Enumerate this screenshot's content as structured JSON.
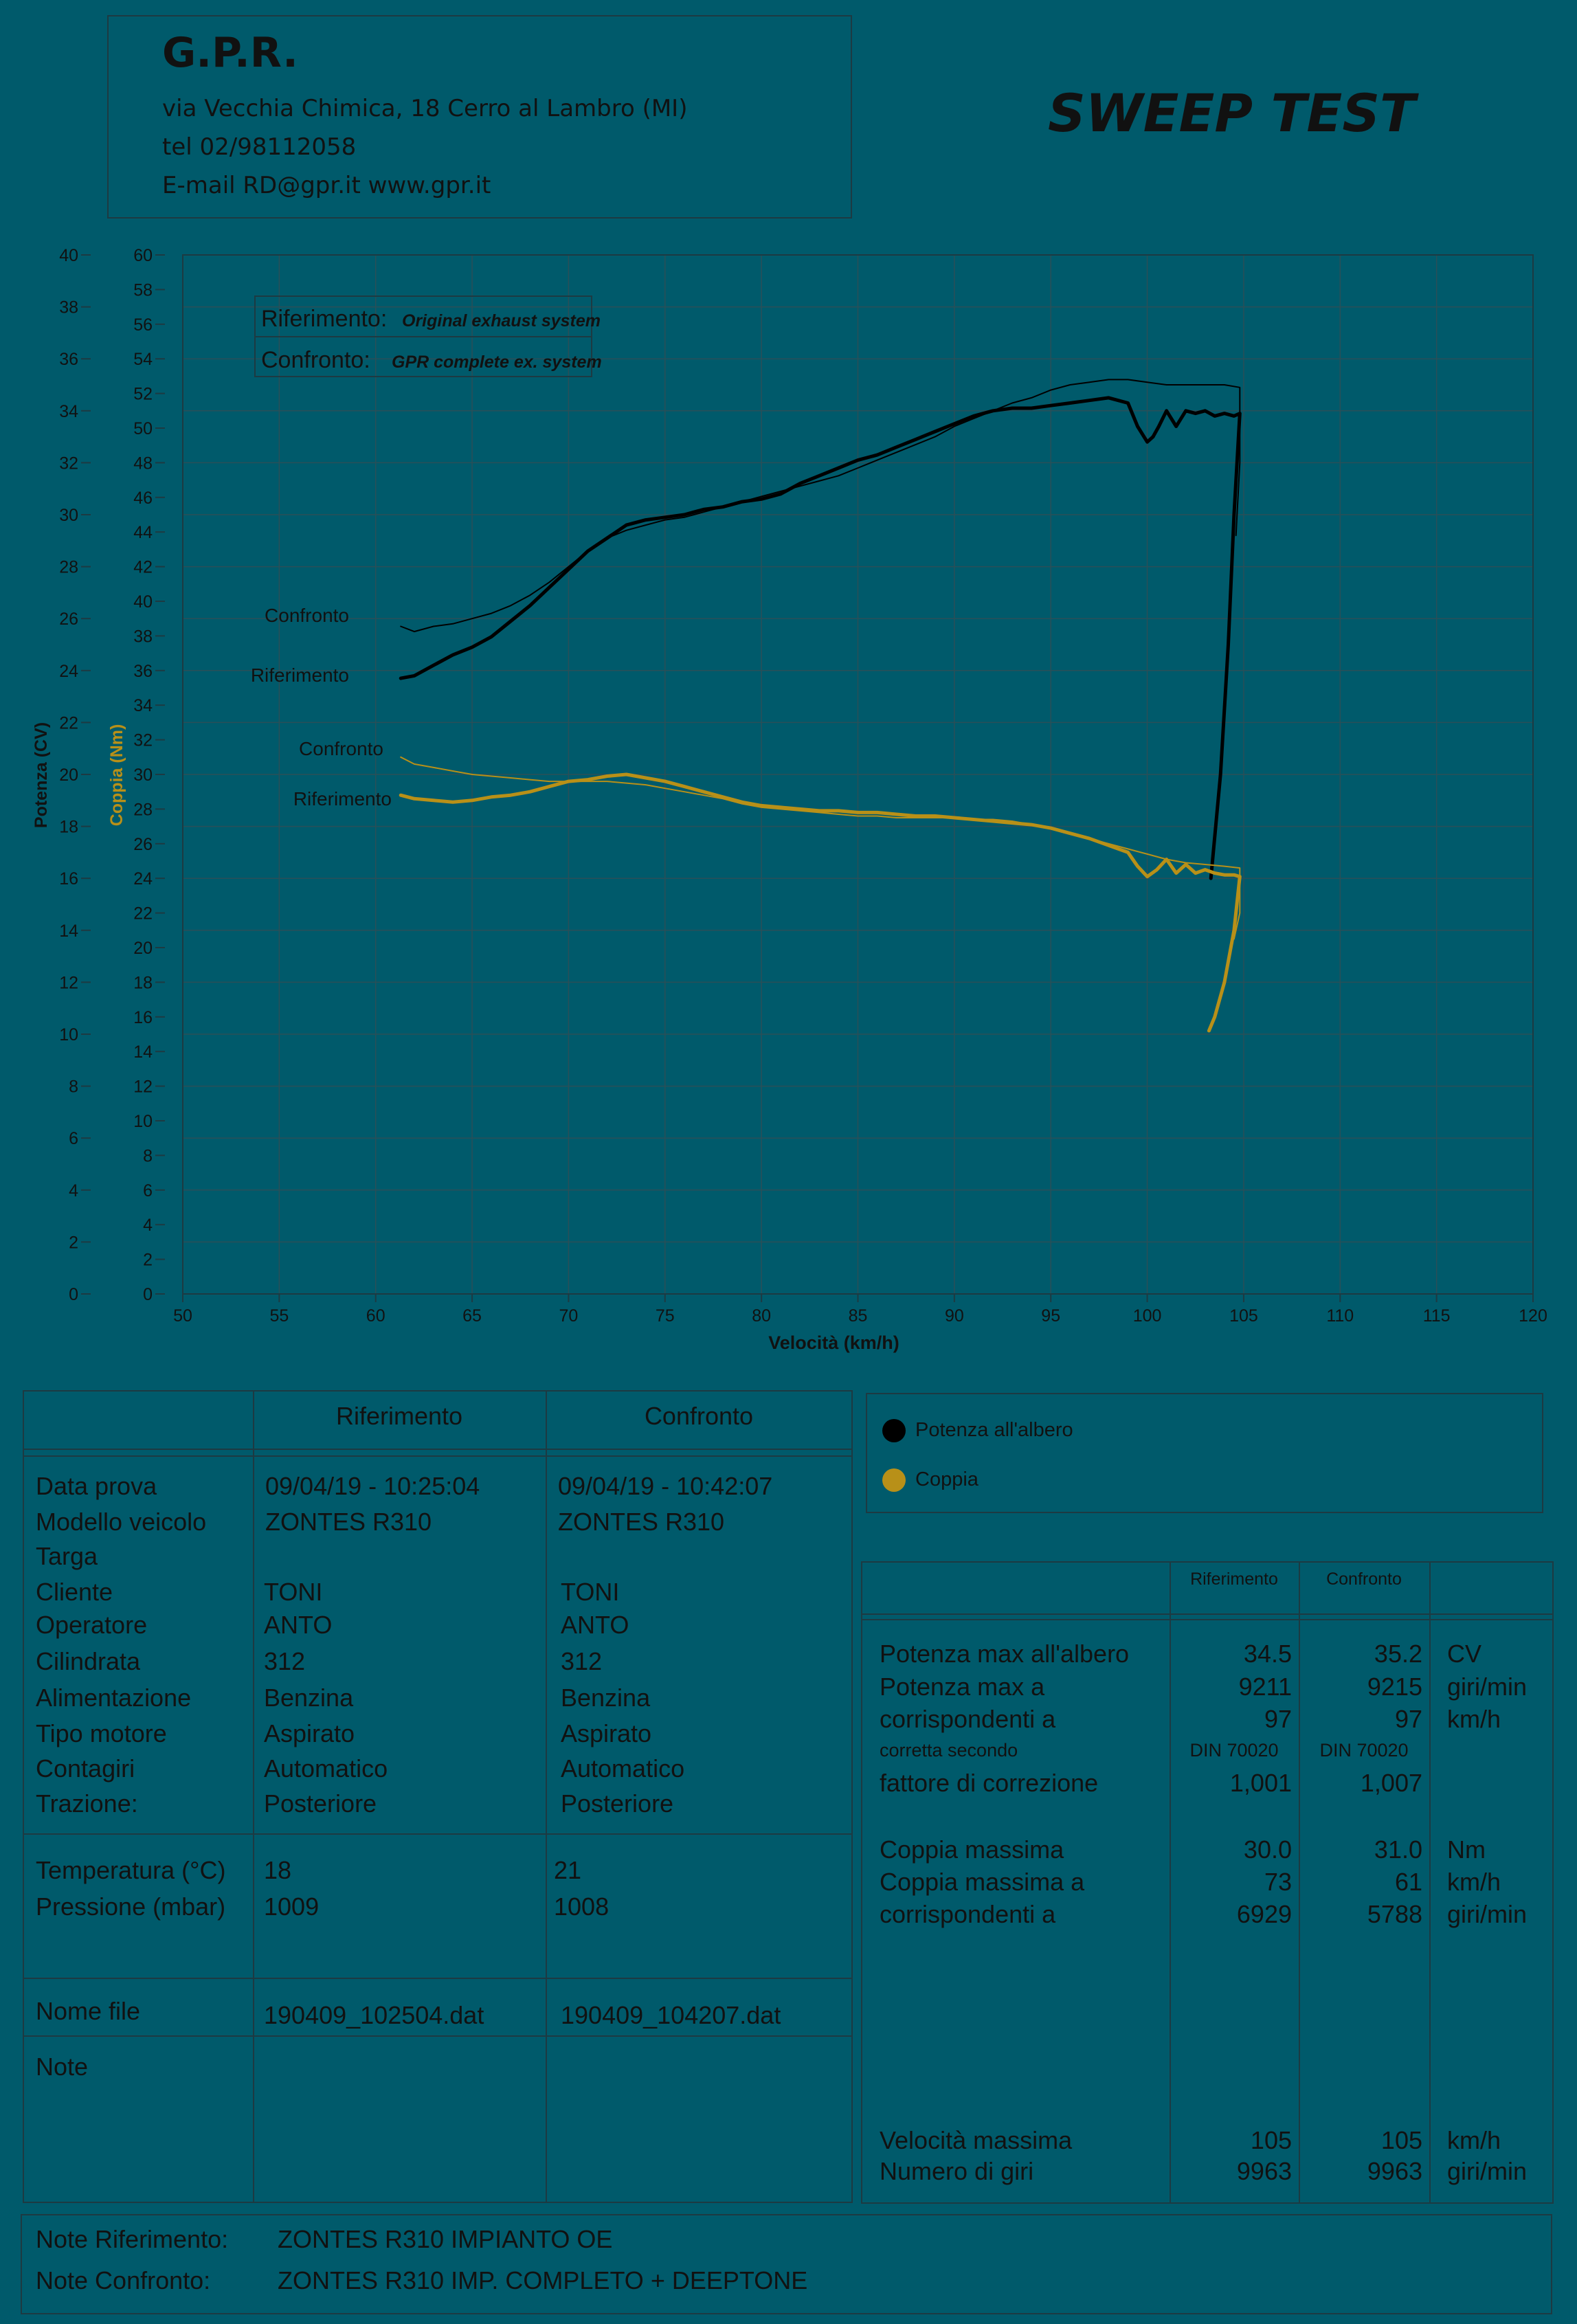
{
  "company": {
    "name": "G.P.R.",
    "address": "via Vecchia Chimica, 18 Cerro al Lambro (MI)",
    "phone": "tel 02/98112058",
    "contact": "E-mail RD@gpr.it  www.gpr.it"
  },
  "report_title": "SWEEP TEST",
  "chart_data": {
    "type": "line",
    "title": "",
    "xlabel": "Velocità (km/h)",
    "ylabel_power": "Potenza (CV)",
    "ylabel_torque": "Coppia (Nm)",
    "xlim": [
      50,
      120
    ],
    "xticks": [
      "50",
      "55",
      "60",
      "65",
      "70",
      "75",
      "80",
      "85",
      "90",
      "95",
      "100",
      "105",
      "110",
      "115",
      "120"
    ],
    "ylim_power": [
      0,
      40
    ],
    "yticks_power": [
      "0",
      "2",
      "4",
      "6",
      "8",
      "10",
      "12",
      "14",
      "16",
      "18",
      "20",
      "22",
      "24",
      "26",
      "28",
      "30",
      "32",
      "34",
      "36",
      "38",
      "40"
    ],
    "ylim_torque": [
      0,
      60
    ],
    "yticks_torque": [
      "0",
      "2",
      "4",
      "6",
      "8",
      "10",
      "12",
      "14",
      "16",
      "18",
      "20",
      "22",
      "24",
      "26",
      "28",
      "30",
      "32",
      "34",
      "36",
      "38",
      "40",
      "42",
      "44",
      "46",
      "48",
      "50",
      "52",
      "54",
      "56",
      "58",
      "60"
    ],
    "grid": true,
    "colors": {
      "power": "#000000",
      "torque": "#b89018",
      "axis": "#1d3a42",
      "grid": "#2a4f58"
    },
    "legend_box": {
      "ref_label": "Riferimento:",
      "ref_desc": "Original exhaust system",
      "cmp_label": "Confronto:",
      "cmp_desc": "GPR complete ex. system"
    },
    "curve_labels": {
      "power_cmp": "Confronto",
      "power_ref": "Riferimento",
      "torque_cmp": "Confronto",
      "torque_ref": "Riferimento"
    },
    "series": [
      {
        "id": "power_ref",
        "axis": "power",
        "weight": "thick",
        "x": [
          61.3,
          62,
          63,
          64,
          65,
          66,
          67,
          68,
          69,
          70,
          71,
          72,
          73,
          74,
          75,
          76,
          77,
          78,
          79,
          80,
          81,
          82,
          83,
          84,
          85,
          86,
          87,
          88,
          89,
          90,
          91,
          92,
          93,
          94,
          95,
          96,
          97,
          98,
          99,
          99.5,
          100,
          100.3,
          100.6,
          101,
          101.5,
          102,
          102.5,
          103,
          103.5,
          104,
          104.5,
          104.8,
          104.5,
          104.2,
          103.8,
          103.3
        ],
        "y": [
          23.7,
          23.8,
          24.2,
          24.6,
          24.9,
          25.3,
          25.9,
          26.5,
          27.2,
          27.9,
          28.6,
          29.1,
          29.6,
          29.8,
          29.9,
          30.0,
          30.2,
          30.3,
          30.5,
          30.6,
          30.8,
          31.2,
          31.5,
          31.8,
          32.1,
          32.3,
          32.6,
          32.9,
          33.2,
          33.5,
          33.8,
          34.0,
          34.1,
          34.1,
          34.2,
          34.3,
          34.4,
          34.5,
          34.3,
          33.4,
          32.8,
          33.0,
          33.4,
          34.0,
          33.4,
          34.0,
          33.9,
          34.0,
          33.8,
          33.9,
          33.8,
          33.9,
          30.0,
          25.0,
          20.0,
          16.0
        ]
      },
      {
        "id": "power_cmp",
        "axis": "power",
        "weight": "thin",
        "x": [
          61.3,
          62,
          63,
          64,
          65,
          66,
          67,
          68,
          69,
          70,
          71,
          72,
          73,
          74,
          75,
          76,
          77,
          78,
          79,
          80,
          81,
          82,
          83,
          84,
          85,
          86,
          87,
          88,
          89,
          90,
          91,
          92,
          93,
          94,
          95,
          96,
          97,
          98,
          99,
          100,
          101,
          102,
          103,
          104,
          104.8,
          104.8,
          104.6
        ],
        "y": [
          25.7,
          25.5,
          25.7,
          25.8,
          26.0,
          26.2,
          26.5,
          26.9,
          27.4,
          28.0,
          28.6,
          29.1,
          29.4,
          29.6,
          29.8,
          29.9,
          30.1,
          30.3,
          30.5,
          30.7,
          30.9,
          31.1,
          31.3,
          31.5,
          31.8,
          32.1,
          32.4,
          32.7,
          33.0,
          33.4,
          33.7,
          34.0,
          34.3,
          34.5,
          34.8,
          35.0,
          35.1,
          35.2,
          35.2,
          35.1,
          35.0,
          35.0,
          35.0,
          35.0,
          34.9,
          32.0,
          29.2
        ]
      },
      {
        "id": "torque_ref",
        "axis": "torque",
        "weight": "thick",
        "x": [
          61.3,
          62,
          63,
          64,
          65,
          66,
          67,
          68,
          69,
          70,
          71,
          72,
          73,
          74,
          75,
          76,
          77,
          78,
          79,
          80,
          81,
          82,
          83,
          84,
          85,
          86,
          87,
          88,
          89,
          90,
          91,
          92,
          93,
          94,
          95,
          96,
          97,
          98,
          99,
          99.5,
          100,
          100.5,
          101,
          101.5,
          102,
          102.5,
          103,
          103.5,
          104,
          104.5,
          104.8,
          104.5,
          104,
          103.5,
          103.2
        ],
        "y": [
          28.8,
          28.6,
          28.5,
          28.4,
          28.5,
          28.7,
          28.8,
          29.0,
          29.3,
          29.6,
          29.7,
          29.9,
          30.0,
          29.8,
          29.6,
          29.3,
          29.0,
          28.7,
          28.4,
          28.2,
          28.1,
          28.0,
          27.9,
          27.9,
          27.8,
          27.8,
          27.7,
          27.6,
          27.6,
          27.5,
          27.4,
          27.3,
          27.2,
          27.1,
          26.9,
          26.6,
          26.3,
          25.9,
          25.5,
          24.7,
          24.1,
          24.5,
          25.1,
          24.3,
          24.8,
          24.3,
          24.5,
          24.3,
          24.2,
          24.2,
          24.1,
          21.0,
          18.0,
          16.0,
          15.2
        ]
      },
      {
        "id": "torque_cmp",
        "axis": "torque",
        "weight": "thin",
        "x": [
          61.3,
          62,
          63,
          64,
          65,
          66,
          67,
          68,
          69,
          70,
          71,
          72,
          73,
          74,
          75,
          76,
          77,
          78,
          79,
          80,
          81,
          82,
          83,
          84,
          85,
          86,
          87,
          88,
          89,
          90,
          91,
          92,
          93,
          94,
          95,
          96,
          97,
          98,
          99,
          100,
          101,
          102,
          103,
          104,
          104.8,
          104.8,
          104.5
        ],
        "y": [
          31.0,
          30.6,
          30.4,
          30.2,
          30.0,
          29.9,
          29.8,
          29.7,
          29.6,
          29.6,
          29.6,
          29.6,
          29.5,
          29.4,
          29.2,
          29.0,
          28.8,
          28.6,
          28.3,
          28.1,
          28.0,
          27.9,
          27.8,
          27.7,
          27.6,
          27.6,
          27.5,
          27.5,
          27.5,
          27.5,
          27.4,
          27.4,
          27.3,
          27.1,
          26.9,
          26.6,
          26.3,
          26.0,
          25.7,
          25.4,
          25.1,
          24.9,
          24.8,
          24.7,
          24.6,
          22.0,
          20.5
        ]
      }
    ]
  },
  "info_table": {
    "headers": [
      "Riferimento",
      "Confronto"
    ],
    "labels": [
      "Data prova",
      "Modello veicolo",
      "Targa",
      "Cliente",
      "Operatore",
      "Cilindrata",
      "Alimentazione",
      "Tipo motore",
      "Contagiri",
      "Trazione:"
    ],
    "ref": [
      "09/04/19 - 10:25:04",
      "ZONTES R310",
      "",
      "TONI",
      "ANTO",
      "312",
      "Benzina",
      "Aspirato",
      "Automatico",
      "Posteriore"
    ],
    "cmp": [
      "09/04/19 - 10:42:07",
      "ZONTES R310",
      "",
      "TONI",
      "ANTO",
      "312",
      "Benzina",
      "Aspirato",
      "Automatico",
      "Posteriore"
    ],
    "env_labels": [
      "Temperatura (°C)",
      "Pressione (mbar)"
    ],
    "env_ref": [
      "18",
      "1009"
    ],
    "env_cmp": [
      "21",
      "1008"
    ],
    "file_label": "Nome file",
    "file_ref": "190409_102504.dat",
    "file_cmp": "190409_104207.dat",
    "note_label": "Note"
  },
  "legend": {
    "power": "Potenza all'albero",
    "torque": "Coppia"
  },
  "results": {
    "headers": [
      "Riferimento",
      "Confronto"
    ],
    "rows1": [
      {
        "label": "Potenza max all'albero",
        "ref": "34.5",
        "cmp": "35.2",
        "unit": "CV"
      },
      {
        "label": "Potenza max a",
        "ref": "9211",
        "cmp": "9215",
        "unit": "giri/min"
      },
      {
        "label": "corrispondenti a",
        "ref": "97",
        "cmp": "97",
        "unit": "km/h"
      }
    ],
    "corr_label": "corretta secondo",
    "corr_ref": "DIN 70020",
    "corr_cmp": "DIN 70020",
    "factor": {
      "label": "fattore di correzione",
      "ref": "1,001",
      "cmp": "1,007"
    },
    "rows2": [
      {
        "label": "Coppia massima",
        "ref": "30.0",
        "cmp": "31.0",
        "unit": "Nm"
      },
      {
        "label": "Coppia massima a",
        "ref": "73",
        "cmp": "61",
        "unit": "km/h"
      },
      {
        "label": "corrispondenti a",
        "ref": "6929",
        "cmp": "5788",
        "unit": "giri/min"
      }
    ],
    "rows3": [
      {
        "label": "Velocità massima",
        "ref": "105",
        "cmp": "105",
        "unit": "km/h"
      },
      {
        "label": "Numero di giri",
        "ref": "9963",
        "cmp": "9963",
        "unit": "giri/min"
      }
    ]
  },
  "notes": {
    "ref_label": "Note Riferimento:",
    "ref_value": "ZONTES R310 IMPIANTO OE",
    "cmp_label": "Note Confronto:",
    "cmp_value": "ZONTES R310 IMP. COMPLETO + DEEPTONE"
  }
}
